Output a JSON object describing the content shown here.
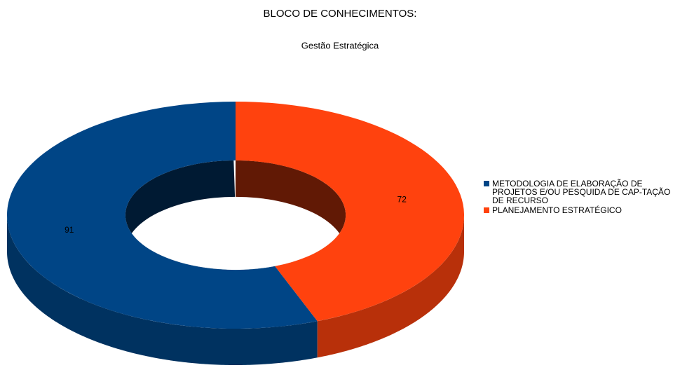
{
  "chart_data": {
    "type": "donut3d",
    "title": "BLOCO DE CONHECIMENTOS:",
    "subtitle": "Gestão Estratégica",
    "categories": [
      "METODOLOGIA DE ELABORAÇÃO DE PROJETOS E/OU PESQUIDA DE CAP-TAÇÃO DE RECURSO",
      "PLANEJAMENTO ESTRATÉGICO"
    ],
    "values": [
      91,
      72
    ],
    "colors": [
      "#004586",
      "#ff420e"
    ],
    "legend": "right"
  }
}
